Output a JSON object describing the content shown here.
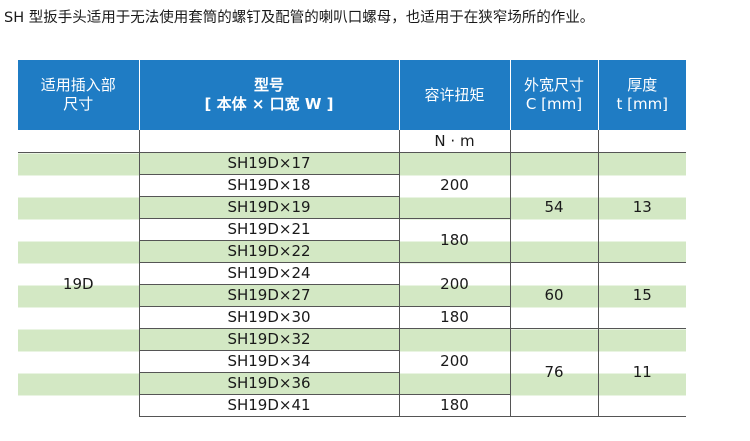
{
  "intro_text": "SH 型扳手头适用于无法使用套筒的螺钉及配管的喇叭口螺母，也适用于在狭窄场所的作业。",
  "header": {
    "col1_line1": "适用插入部",
    "col1_line2": "尺寸",
    "col2_line1": "型号",
    "col2_line2": "[ 本体 × 口宽 W ]",
    "col3": "容许扭矩",
    "col4_line1": "外宽尺寸",
    "col4_line2": "C [mm]",
    "col5_line1": "厚度",
    "col5_line2": "t [mm]"
  },
  "torque_unit": "N · m",
  "insert_size": "19D",
  "models": [
    "SH19D×17",
    "SH19D×18",
    "SH19D×19",
    "SH19D×21",
    "SH19D×22",
    "SH19D×24",
    "SH19D×27",
    "SH19D×30",
    "SH19D×32",
    "SH19D×34",
    "SH19D×36",
    "SH19D×41"
  ],
  "torque_groups": [
    {
      "value": "200",
      "rows": 3
    },
    {
      "value": "180",
      "rows": 2
    },
    {
      "value": "200",
      "rows": 2
    },
    {
      "value": "180",
      "rows": 1
    },
    {
      "value": "200",
      "rows": 3
    },
    {
      "value": "180",
      "rows": 1
    }
  ],
  "dimension_groups": [
    {
      "width_c": "54",
      "thickness_t": "13",
      "rows": 5
    },
    {
      "width_c": "60",
      "thickness_t": "15",
      "rows": 3
    },
    {
      "width_c": "76",
      "thickness_t": "11",
      "rows": 4
    }
  ],
  "colors": {
    "header_bg": "#1f7cc4",
    "stripe": "#d3e8c4"
  }
}
